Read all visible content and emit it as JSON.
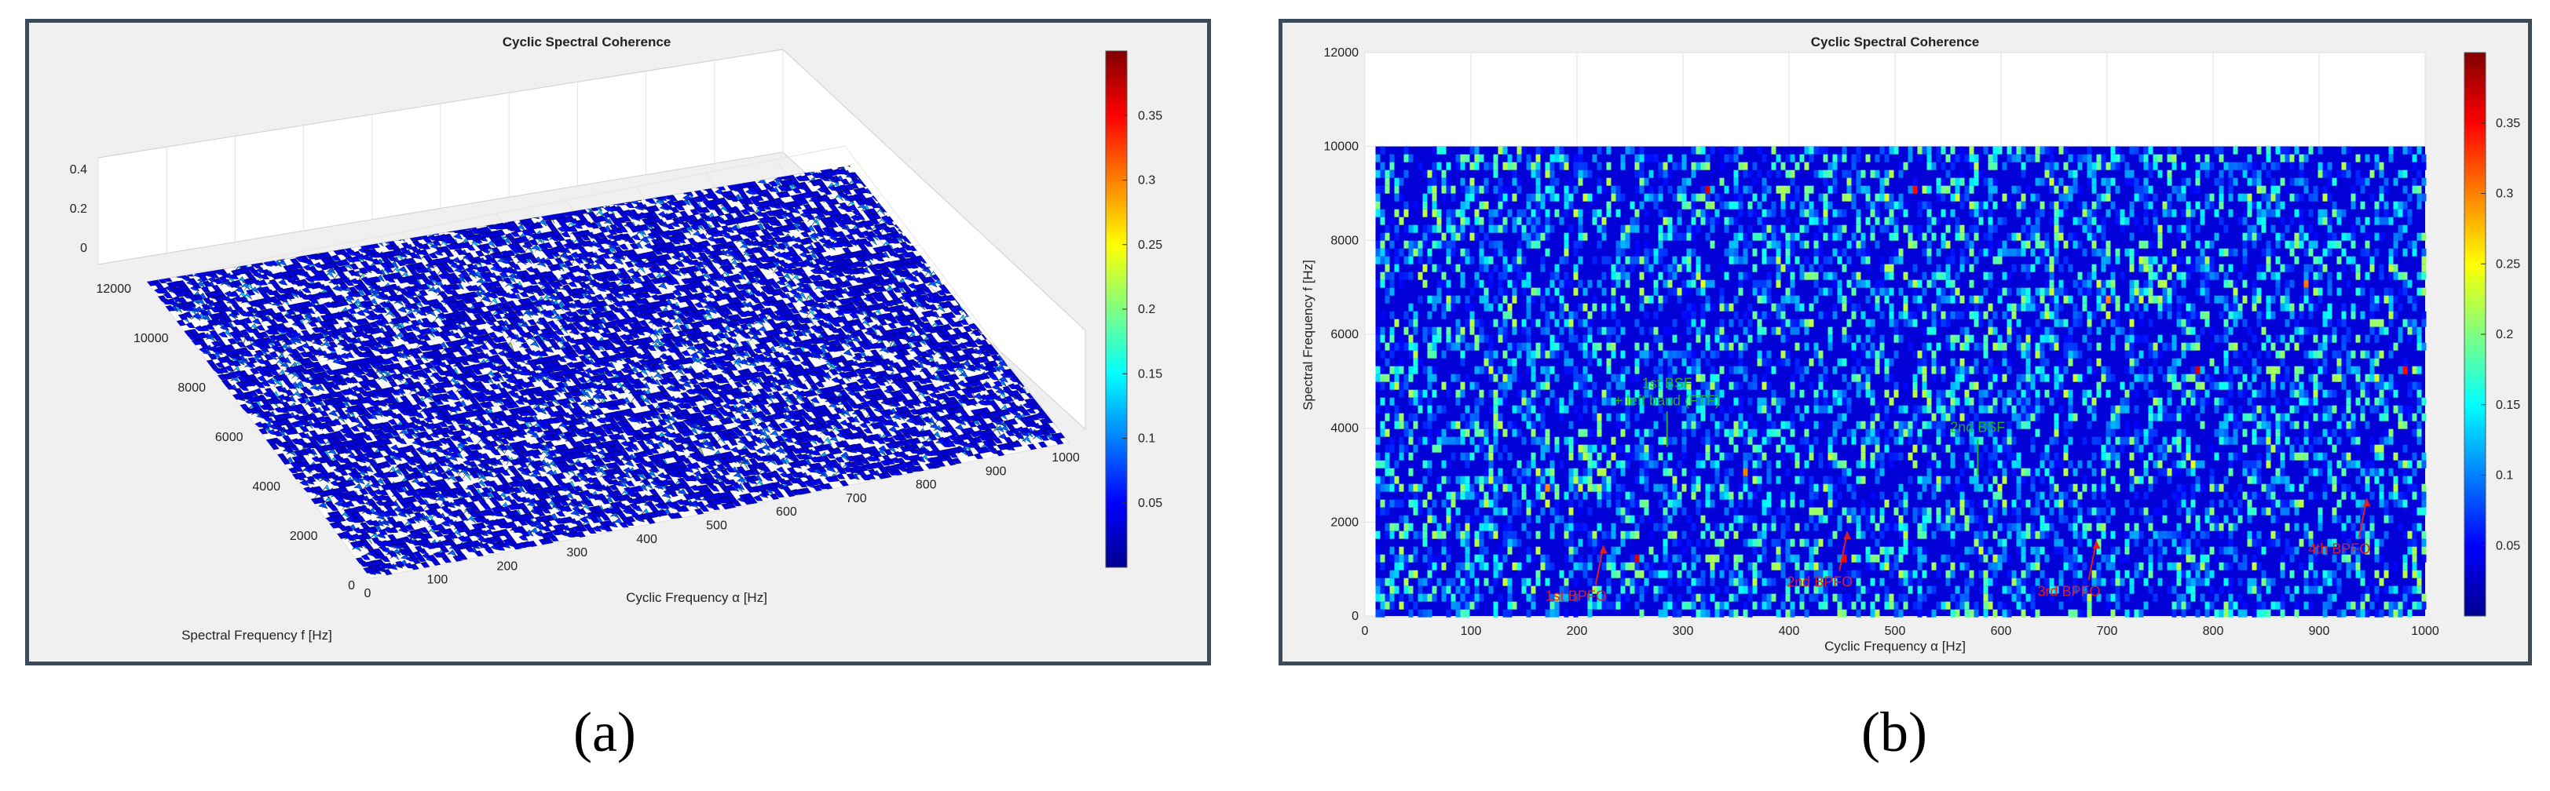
{
  "captions": {
    "a": "(a)",
    "b": "(b)"
  },
  "colormap": {
    "colors": [
      "#00008f",
      "#0000ff",
      "#0080ff",
      "#00ffff",
      "#80ff80",
      "#ffff00",
      "#ff8000",
      "#ff0000",
      "#800000"
    ]
  },
  "chart_data": [
    {
      "type": "surface",
      "title": "Cyclic Spectral Coherence",
      "xlabel": "Cyclic Frequency α [Hz]",
      "ylabel": "Spectral Frequency f [Hz]",
      "xlim": [
        0,
        1000
      ],
      "ylim": [
        0,
        12000
      ],
      "zlim": [
        0,
        0.4
      ],
      "x_ticks": [
        "0",
        "100",
        "200",
        "300",
        "400",
        "500",
        "600",
        "700",
        "800",
        "900",
        "1000"
      ],
      "y_ticks": [
        "0",
        "2000",
        "4000",
        "6000",
        "8000",
        "10000",
        "12000"
      ],
      "z_ticks": [
        "0",
        "0.2",
        "0.4"
      ],
      "colorbar_ticks": [
        "0.05",
        "0.1",
        "0.15",
        "0.2",
        "0.25",
        "0.3",
        "0.35"
      ],
      "colorbar_range": [
        0,
        0.4
      ],
      "grid": true
    },
    {
      "type": "heatmap",
      "title": "Cyclic Spectral Coherence",
      "xlabel": "Cyclic Frequency α [Hz]",
      "ylabel": "Spectral Frequency f [Hz]",
      "xlim": [
        0,
        1000
      ],
      "ylim": [
        0,
        12000
      ],
      "data_extent": {
        "x": [
          10,
          1000
        ],
        "y": [
          0,
          10000
        ]
      },
      "x_ticks": [
        "0",
        "100",
        "200",
        "300",
        "400",
        "500",
        "600",
        "700",
        "800",
        "900",
        "1000"
      ],
      "y_ticks": [
        "0",
        "2000",
        "4000",
        "6000",
        "8000",
        "10000",
        "12000"
      ],
      "colorbar_ticks": [
        "0.05",
        "0.1",
        "0.15",
        "0.2",
        "0.25",
        "0.3",
        "0.35"
      ],
      "colorbar_range": [
        0,
        0.4
      ],
      "grid": true,
      "annotations": [
        {
          "text": "1st BPFO",
          "x": 225,
          "y": 1500,
          "color": "red"
        },
        {
          "text": "2nd BPFO",
          "x": 455,
          "y": 1800,
          "color": "red"
        },
        {
          "text": "3rd BPFO",
          "x": 690,
          "y": 1600,
          "color": "red"
        },
        {
          "text": "4th BPFO",
          "x": 945,
          "y": 2500,
          "color": "red"
        },
        {
          "text": "1st BSF",
          "line2": "+ left band (FTF)",
          "x": 285,
          "y": 3600,
          "color": "green"
        },
        {
          "text": "2nd BSF",
          "x": 578,
          "y": 3000,
          "color": "green"
        }
      ]
    }
  ]
}
